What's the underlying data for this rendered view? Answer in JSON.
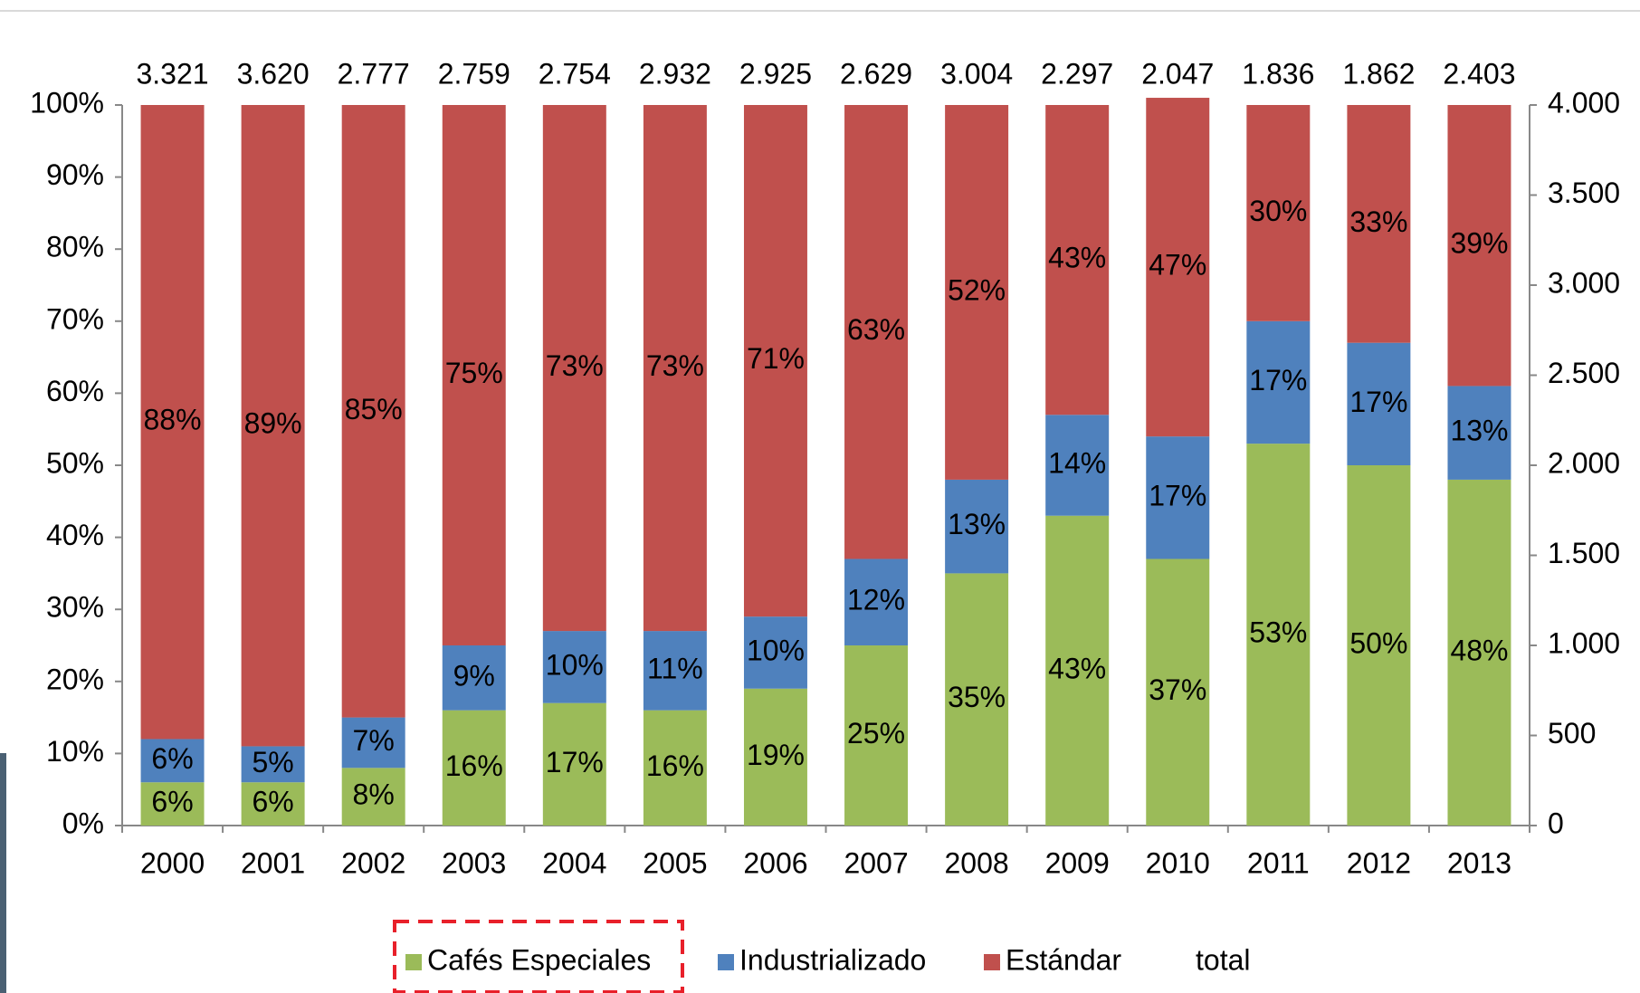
{
  "chart_data": {
    "type": "stacked_bar",
    "categories": [
      "2000",
      "2001",
      "2002",
      "2003",
      "2004",
      "2005",
      "2006",
      "2007",
      "2008",
      "2009",
      "2010",
      "2011",
      "2012",
      "2013"
    ],
    "series": [
      {
        "name": "Cafés Especiales",
        "color": "#9bbb59",
        "values": [
          6,
          6,
          8,
          16,
          17,
          16,
          19,
          25,
          35,
          43,
          37,
          53,
          50,
          48
        ],
        "value_labels": [
          "6%",
          "6%",
          "8%",
          "16%",
          "17%",
          "16%",
          "19%",
          "25%",
          "35%",
          "43%",
          "37%",
          "53%",
          "50%",
          "48%"
        ]
      },
      {
        "name": "Industrializado",
        "color": "#4f81bd",
        "values": [
          6,
          5,
          7,
          9,
          10,
          11,
          10,
          12,
          13,
          14,
          17,
          17,
          17,
          13
        ],
        "value_labels": [
          "6%",
          "5%",
          "7%",
          "9%",
          "10%",
          "11%",
          "10%",
          "12%",
          "13%",
          "14%",
          "17%",
          "17%",
          "17%",
          "13%"
        ]
      },
      {
        "name": "Estándar",
        "color": "#c0504d",
        "values": [
          88,
          89,
          85,
          75,
          73,
          73,
          71,
          63,
          52,
          43,
          47,
          30,
          33,
          39
        ],
        "value_labels": [
          "88%",
          "89%",
          "85%",
          "75%",
          "73%",
          "73%",
          "71%",
          "63%",
          "52%",
          "43%",
          "47%",
          "30%",
          "33%",
          "39%"
        ]
      },
      {
        "name": "total",
        "axis": "y2",
        "values": [
          3321,
          3620,
          2777,
          2759,
          2754,
          2932,
          2925,
          2629,
          3004,
          2297,
          2047,
          1836,
          1862,
          2403
        ],
        "value_labels": [
          "3.321",
          "3.620",
          "2.777",
          "2.759",
          "2.754",
          "2.932",
          "2.925",
          "2.629",
          "3.004",
          "2.297",
          "2.047",
          "1.836",
          "1.862",
          "2.403"
        ]
      }
    ],
    "ylim": [
      0,
      100
    ],
    "yticks": [
      {
        "value": 0,
        "label": "0%"
      },
      {
        "value": 10,
        "label": "10%"
      },
      {
        "value": 20,
        "label": "20%"
      },
      {
        "value": 30,
        "label": "30%"
      },
      {
        "value": 40,
        "label": "40%"
      },
      {
        "value": 50,
        "label": "50%"
      },
      {
        "value": 60,
        "label": "60%"
      },
      {
        "value": 70,
        "label": "70%"
      },
      {
        "value": 80,
        "label": "80%"
      },
      {
        "value": 90,
        "label": "90%"
      },
      {
        "value": 100,
        "label": "100%"
      }
    ],
    "y2lim": [
      0,
      4000
    ],
    "y2ticks": [
      0,
      500,
      {
        "value": 1000,
        "label": "1.000"
      },
      {
        "value": 1500,
        "label": "1.500"
      },
      {
        "value": 2000,
        "label": "2.000"
      },
      {
        "value": 2500,
        "label": "2.500"
      },
      {
        "value": 3000,
        "label": "3.000"
      },
      {
        "value": 3500,
        "label": "3.500"
      },
      {
        "value": 4000,
        "label": "4.000"
      }
    ],
    "legend": "bottom"
  }
}
